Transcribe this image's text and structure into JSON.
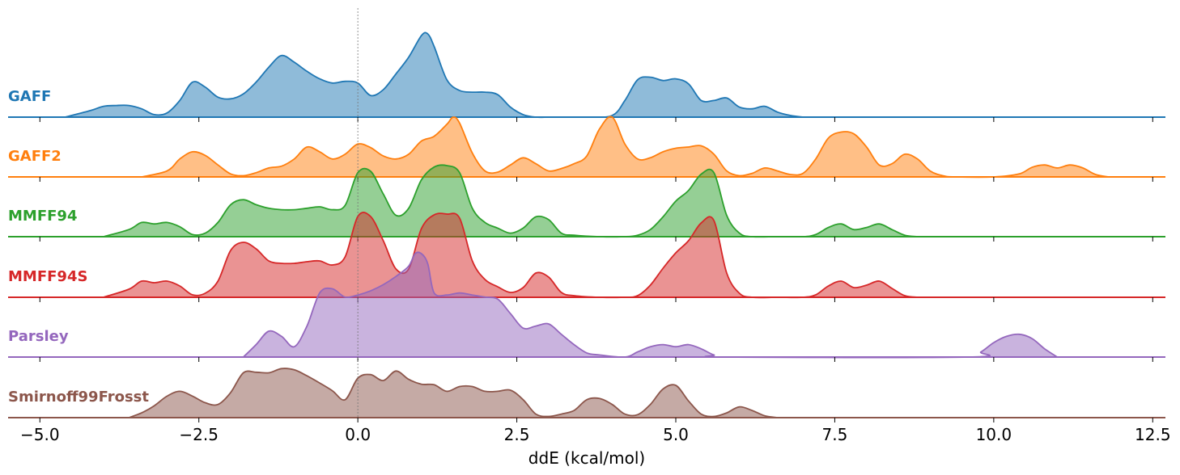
{
  "chart_data": {
    "type": "area",
    "subtype": "ridgeline-kde",
    "xlabel": "ddE (kcal/mol)",
    "xlim": [
      -5.5,
      12.7
    ],
    "xticks": [
      -5.0,
      -2.5,
      0.0,
      2.5,
      5.0,
      7.5,
      10.0,
      12.5
    ],
    "xtick_labels": [
      "−5.0",
      "−2.5",
      "0.0",
      "2.5",
      "5.0",
      "7.5",
      "10.0",
      "12.5"
    ],
    "reference_line_x": 0.0,
    "series": [
      {
        "name": "GAFF",
        "color": "#1f77b4",
        "x": [
          -4.6,
          -4.2,
          -4.0,
          -3.8,
          -3.6,
          -3.4,
          -3.2,
          -3.0,
          -2.8,
          -2.6,
          -2.4,
          -2.2,
          -2.0,
          -1.8,
          -1.6,
          -1.4,
          -1.2,
          -1.0,
          -0.8,
          -0.6,
          -0.4,
          -0.2,
          0.0,
          0.2,
          0.4,
          0.6,
          0.8,
          1.0,
          1.1,
          1.2,
          1.4,
          1.6,
          1.8,
          2.0,
          2.2,
          2.4,
          2.6,
          2.8,
          3.0,
          3.2,
          3.6,
          4.0,
          4.2,
          4.4,
          4.6,
          4.8,
          5.0,
          5.2,
          5.4,
          5.6,
          5.8,
          6.0,
          6.2,
          6.4,
          6.6,
          6.8,
          7.0
        ],
        "y": [
          0.0,
          0.08,
          0.13,
          0.14,
          0.14,
          0.1,
          0.03,
          0.05,
          0.2,
          0.42,
          0.36,
          0.24,
          0.22,
          0.28,
          0.42,
          0.6,
          0.74,
          0.66,
          0.55,
          0.46,
          0.41,
          0.43,
          0.41,
          0.26,
          0.33,
          0.52,
          0.72,
          0.98,
          1.0,
          0.85,
          0.45,
          0.32,
          0.3,
          0.3,
          0.27,
          0.12,
          0.03,
          0.0,
          0.0,
          0.0,
          0.0,
          0.02,
          0.2,
          0.45,
          0.48,
          0.44,
          0.46,
          0.4,
          0.2,
          0.2,
          0.23,
          0.12,
          0.1,
          0.13,
          0.06,
          0.02,
          0.0
        ]
      },
      {
        "name": "GAFF2",
        "color": "#ff7f0e",
        "x": [
          -3.4,
          -3.0,
          -2.8,
          -2.6,
          -2.4,
          -2.2,
          -2.0,
          -1.8,
          -1.6,
          -1.4,
          -1.2,
          -1.0,
          -0.8,
          -0.6,
          -0.4,
          -0.2,
          0.0,
          0.2,
          0.4,
          0.6,
          0.8,
          1.0,
          1.2,
          1.4,
          1.5,
          1.6,
          1.8,
          2.0,
          2.2,
          2.4,
          2.6,
          2.8,
          3.0,
          3.2,
          3.4,
          3.6,
          3.8,
          4.0,
          4.2,
          4.4,
          4.6,
          4.8,
          5.0,
          5.2,
          5.4,
          5.6,
          5.8,
          6.0,
          6.2,
          6.4,
          6.6,
          6.8,
          7.0,
          7.2,
          7.4,
          7.6,
          7.8,
          8.0,
          8.2,
          8.4,
          8.6,
          8.8,
          9.0,
          9.2,
          9.4,
          10.0,
          10.4,
          10.6,
          10.8,
          11.0,
          11.2,
          11.4,
          11.6,
          11.8
        ],
        "y": [
          0.0,
          0.1,
          0.3,
          0.42,
          0.36,
          0.2,
          0.05,
          0.02,
          0.07,
          0.15,
          0.18,
          0.3,
          0.5,
          0.42,
          0.3,
          0.38,
          0.55,
          0.49,
          0.35,
          0.3,
          0.38,
          0.6,
          0.68,
          0.88,
          1.0,
          0.9,
          0.4,
          0.1,
          0.08,
          0.2,
          0.32,
          0.22,
          0.1,
          0.14,
          0.22,
          0.35,
          0.8,
          1.0,
          0.55,
          0.3,
          0.32,
          0.42,
          0.48,
          0.5,
          0.52,
          0.38,
          0.1,
          0.02,
          0.06,
          0.15,
          0.1,
          0.04,
          0.06,
          0.3,
          0.65,
          0.75,
          0.72,
          0.5,
          0.2,
          0.22,
          0.38,
          0.3,
          0.1,
          0.02,
          0.0,
          0.0,
          0.05,
          0.16,
          0.2,
          0.15,
          0.2,
          0.15,
          0.04,
          0.0
        ]
      },
      {
        "name": "MMFF94",
        "color": "#2ca02c",
        "x": [
          -4.0,
          -3.6,
          -3.4,
          -3.2,
          -3.0,
          -2.8,
          -2.6,
          -2.4,
          -2.2,
          -2.0,
          -1.8,
          -1.6,
          -1.4,
          -1.2,
          -1.0,
          -0.8,
          -0.6,
          -0.4,
          -0.2,
          0.0,
          0.2,
          0.4,
          0.6,
          0.8,
          1.0,
          1.2,
          1.4,
          1.6,
          1.8,
          2.0,
          2.2,
          2.4,
          2.6,
          2.8,
          3.0,
          3.2,
          3.4,
          3.8,
          4.2,
          4.4,
          4.6,
          4.8,
          5.0,
          5.2,
          5.4,
          5.6,
          5.8,
          6.0,
          6.2,
          6.6,
          7.0,
          7.2,
          7.4,
          7.6,
          7.8,
          8.0,
          8.2,
          8.4,
          8.6,
          8.8
        ],
        "y": [
          0.0,
          0.1,
          0.2,
          0.18,
          0.2,
          0.14,
          0.03,
          0.05,
          0.2,
          0.45,
          0.52,
          0.45,
          0.4,
          0.38,
          0.38,
          0.4,
          0.42,
          0.38,
          0.44,
          0.9,
          0.92,
          0.6,
          0.3,
          0.4,
          0.8,
          0.98,
          1.0,
          0.9,
          0.4,
          0.2,
          0.12,
          0.05,
          0.12,
          0.28,
          0.24,
          0.05,
          0.02,
          0.0,
          0.0,
          0.02,
          0.1,
          0.28,
          0.5,
          0.65,
          0.88,
          0.9,
          0.3,
          0.05,
          0.0,
          0.0,
          0.0,
          0.03,
          0.13,
          0.18,
          0.1,
          0.13,
          0.18,
          0.1,
          0.02,
          0.0
        ]
      },
      {
        "name": "MMFF94S",
        "color": "#d62728",
        "x": [
          -4.0,
          -3.6,
          -3.4,
          -3.2,
          -3.0,
          -2.8,
          -2.6,
          -2.4,
          -2.2,
          -2.0,
          -1.8,
          -1.6,
          -1.4,
          -1.2,
          -1.0,
          -0.8,
          -0.6,
          -0.4,
          -0.2,
          0.0,
          0.2,
          0.4,
          0.6,
          0.8,
          1.0,
          1.2,
          1.4,
          1.6,
          1.8,
          2.0,
          2.2,
          2.4,
          2.6,
          2.8,
          3.0,
          3.2,
          3.4,
          3.8,
          4.2,
          4.4,
          4.6,
          4.8,
          5.0,
          5.2,
          5.4,
          5.6,
          5.8,
          6.0,
          6.2,
          6.6,
          7.0,
          7.2,
          7.4,
          7.6,
          7.8,
          8.0,
          8.2,
          8.4,
          8.6,
          8.8
        ],
        "y": [
          0.0,
          0.1,
          0.2,
          0.18,
          0.2,
          0.14,
          0.03,
          0.05,
          0.2,
          0.58,
          0.68,
          0.6,
          0.45,
          0.42,
          0.42,
          0.44,
          0.45,
          0.4,
          0.5,
          1.0,
          1.0,
          0.7,
          0.35,
          0.35,
          0.85,
          1.02,
          1.03,
          0.98,
          0.45,
          0.22,
          0.13,
          0.06,
          0.12,
          0.3,
          0.25,
          0.06,
          0.02,
          0.0,
          0.0,
          0.02,
          0.15,
          0.36,
          0.55,
          0.7,
          0.92,
          0.95,
          0.3,
          0.05,
          0.0,
          0.0,
          0.0,
          0.03,
          0.14,
          0.2,
          0.12,
          0.15,
          0.2,
          0.11,
          0.02,
          0.0
        ]
      },
      {
        "name": "Parsley",
        "color": "#9467bd",
        "x": [
          -1.8,
          -1.6,
          -1.4,
          -1.2,
          -1.0,
          -0.8,
          -0.6,
          -0.4,
          -0.2,
          0.0,
          0.2,
          0.4,
          0.6,
          0.8,
          0.9,
          1.0,
          1.1,
          1.2,
          1.4,
          1.6,
          1.8,
          2.0,
          2.2,
          2.4,
          2.6,
          2.8,
          3.0,
          3.2,
          3.4,
          3.6,
          3.8,
          4.2,
          4.4,
          4.6,
          4.8,
          5.0,
          5.2,
          5.4,
          5.6,
          5.8,
          9.6,
          9.8,
          10.0,
          10.2,
          10.4,
          10.6,
          10.8,
          11.0
        ],
        "y": [
          0.0,
          0.12,
          0.25,
          0.2,
          0.1,
          0.3,
          0.62,
          0.66,
          0.58,
          0.6,
          0.64,
          0.7,
          0.78,
          0.88,
          1.0,
          1.0,
          0.9,
          0.62,
          0.6,
          0.62,
          0.6,
          0.58,
          0.56,
          0.42,
          0.28,
          0.3,
          0.32,
          0.22,
          0.12,
          0.04,
          0.02,
          0.0,
          0.05,
          0.1,
          0.12,
          0.1,
          0.12,
          0.08,
          0.02,
          0.0,
          0.0,
          0.05,
          0.14,
          0.2,
          0.22,
          0.18,
          0.08,
          0.0
        ]
      },
      {
        "name": "Smirnoff99Frosst",
        "color": "#8c564b",
        "x": [
          -3.6,
          -3.4,
          -3.2,
          -3.0,
          -2.8,
          -2.6,
          -2.4,
          -2.2,
          -2.0,
          -1.8,
          -1.6,
          -1.4,
          -1.2,
          -1.0,
          -0.8,
          -0.6,
          -0.4,
          -0.2,
          0.0,
          0.2,
          0.4,
          0.6,
          0.8,
          1.0,
          1.2,
          1.4,
          1.6,
          1.8,
          2.0,
          2.2,
          2.4,
          2.6,
          2.8,
          3.0,
          3.2,
          3.4,
          3.6,
          3.8,
          4.0,
          4.2,
          4.4,
          4.6,
          4.8,
          5.0,
          5.2,
          5.4,
          5.6,
          5.8,
          6.0,
          6.2,
          6.4,
          6.6
        ],
        "y": [
          0.0,
          0.08,
          0.2,
          0.36,
          0.44,
          0.36,
          0.25,
          0.22,
          0.42,
          0.75,
          0.76,
          0.75,
          0.82,
          0.8,
          0.7,
          0.58,
          0.45,
          0.3,
          0.66,
          0.72,
          0.62,
          0.78,
          0.64,
          0.56,
          0.55,
          0.44,
          0.52,
          0.52,
          0.44,
          0.44,
          0.46,
          0.3,
          0.06,
          0.02,
          0.06,
          0.12,
          0.3,
          0.32,
          0.22,
          0.06,
          0.05,
          0.22,
          0.48,
          0.54,
          0.28,
          0.06,
          0.02,
          0.08,
          0.18,
          0.12,
          0.03,
          0.0
        ]
      }
    ]
  }
}
